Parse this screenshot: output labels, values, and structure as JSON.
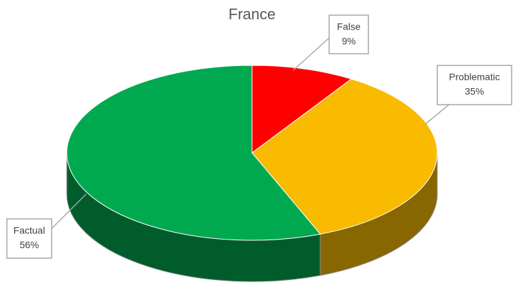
{
  "chart_data": {
    "type": "pie",
    "title": "France",
    "categories": [
      "False",
      "Problematic",
      "Factual"
    ],
    "values": [
      9,
      35,
      56
    ],
    "value_labels": [
      "9%",
      "35%",
      "56%"
    ],
    "colors": [
      "#ff0000",
      "#f8bb00",
      "#00a94f"
    ]
  }
}
